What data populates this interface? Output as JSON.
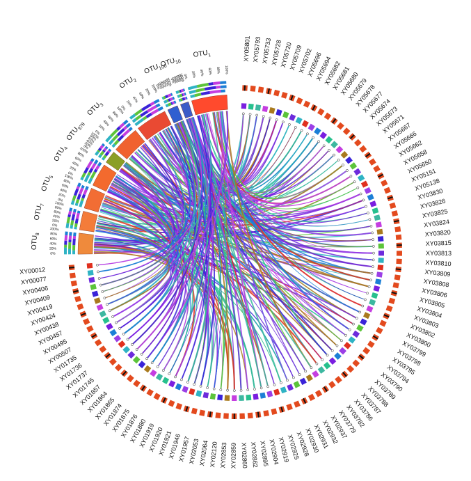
{
  "chart_data": {
    "type": "chord",
    "title": "",
    "otus": [
      {
        "name": "OTU",
        "sub": "1",
        "color": "#ff4a2d"
      },
      {
        "name": "OTU",
        "sub": "10",
        "color": "#3c5cc8"
      },
      {
        "name": "OTU",
        "sub": "100",
        "color": "#2f5fd0"
      },
      {
        "name": "OTU",
        "sub": "2",
        "color": "#e94a33"
      },
      {
        "name": "OTU",
        "sub": "3",
        "color": "#f0622f"
      },
      {
        "name": "OTU",
        "sub": "378",
        "color": "#8a9f25"
      },
      {
        "name": "OTU",
        "sub": "4",
        "color": "#f36a2e"
      },
      {
        "name": "OTU",
        "sub": "5",
        "color": "#f26d34"
      },
      {
        "name": "OTU",
        "sub": "7",
        "color": "#f47c3a"
      },
      {
        "name": "OTU",
        "sub": "8",
        "color": "#ef8a3c"
      }
    ],
    "samples": [
      "XY05801",
      "XY05793",
      "XY05733",
      "XY05728",
      "XY05720",
      "XY05709",
      "XY05702",
      "XY05696",
      "XY05694",
      "XY05682",
      "XY05681",
      "XY05680",
      "XY05679",
      "XY05678",
      "XY05677",
      "XY05674",
      "XY05673",
      "XY05671",
      "XY05667",
      "XY05666",
      "XY05662",
      "XY05658",
      "XY05650",
      "XY05151",
      "XY05138",
      "XY03830",
      "XY03826",
      "XY03825",
      "XY03824",
      "XY03820",
      "XY03815",
      "XY03813",
      "XY03810",
      "XY03809",
      "XY03808",
      "XY03806",
      "XY03805",
      "XY03804",
      "XY03803",
      "XY03802",
      "XY03800",
      "XY03799",
      "XY03798",
      "XY03795",
      "XY03794",
      "XY03790",
      "XY03789",
      "XY03788",
      "XY03787",
      "XY03786",
      "XY03782",
      "XY03779",
      "XY02937",
      "XY02932",
      "XY02931",
      "XY02930",
      "XY02928",
      "XY02925",
      "XY02919",
      "XY02904",
      "XY02895",
      "XY02862",
      "XY02860",
      "XY02859",
      "XY02853",
      "XY02120",
      "XY02064",
      "XY02053",
      "XY01957",
      "XY01946",
      "XY01921",
      "XY01920",
      "XY01919",
      "XY01880",
      "XY01876",
      "XY01875",
      "XY01874",
      "XY01865",
      "XY01864",
      "XY01857",
      "XY01745",
      "XY01737",
      "XY01736",
      "XY01735",
      "XY00507",
      "XY00495",
      "XY00457",
      "XY00438",
      "XY00424",
      "XY00419",
      "XY00409",
      "XY00406",
      "XY00077",
      "XY00012"
    ],
    "axis_ticks": [
      "0%",
      "20%",
      "40%",
      "60%",
      "80%",
      "100%"
    ],
    "palette": [
      "#7a1fe0",
      "#3a23d8",
      "#9b3fe6",
      "#c43ee0",
      "#2fb3c4",
      "#27c08e",
      "#5cc43a",
      "#1c7fd6",
      "#a97a1e",
      "#e0301e",
      "#3db8a0",
      "#6d2bdc"
    ]
  }
}
